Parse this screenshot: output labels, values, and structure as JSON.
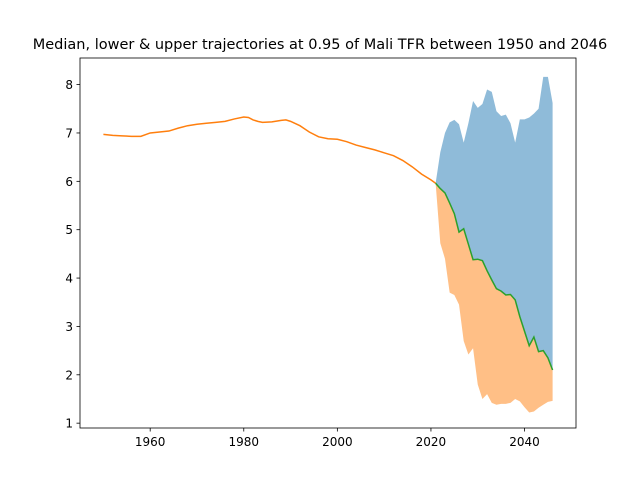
{
  "chart_data": {
    "type": "area",
    "title": "Median, lower & upper trajectories at 0.95 of Mali TFR between 1950 and 2046",
    "xlabel": "",
    "ylabel": "",
    "xlim": [
      1945,
      2051
    ],
    "ylim": [
      0.9,
      8.55
    ],
    "x_ticks": [
      1960,
      1980,
      2000,
      2020,
      2040
    ],
    "y_ticks": [
      1,
      2,
      3,
      4,
      5,
      6,
      7,
      8
    ],
    "grid": false,
    "legend": "none",
    "colors": {
      "upper_band": "#1f77b4",
      "lower_band": "#ff7f0e",
      "historical_line": "#ff7f0e",
      "median_line": "#2ca02c"
    },
    "series": [
      {
        "role": "historical",
        "x": [
          1950,
          1952,
          1954,
          1956,
          1958,
          1960,
          1962,
          1964,
          1966,
          1968,
          1970,
          1972,
          1974,
          1976,
          1978,
          1980,
          1981,
          1982,
          1983,
          1984,
          1986,
          1988,
          1989,
          1990,
          1992,
          1994,
          1996,
          1998,
          2000,
          2002,
          2004,
          2006,
          2008,
          2010,
          2012,
          2014,
          2016,
          2018,
          2020,
          2021
        ],
        "values": [
          6.97,
          6.95,
          6.94,
          6.93,
          6.93,
          7.0,
          7.02,
          7.04,
          7.1,
          7.15,
          7.18,
          7.2,
          7.22,
          7.24,
          7.29,
          7.33,
          7.32,
          7.27,
          7.24,
          7.22,
          7.23,
          7.26,
          7.27,
          7.24,
          7.15,
          7.02,
          6.92,
          6.88,
          6.87,
          6.82,
          6.75,
          6.7,
          6.65,
          6.59,
          6.53,
          6.43,
          6.3,
          6.15,
          6.03,
          5.96
        ]
      },
      {
        "role": "median",
        "x": [
          2021,
          2022,
          2023,
          2024,
          2025,
          2026,
          2027,
          2028,
          2029,
          2030,
          2031,
          2032,
          2033,
          2034,
          2035,
          2036,
          2037,
          2038,
          2039,
          2040,
          2041,
          2042,
          2043,
          2044,
          2045,
          2046
        ],
        "values": [
          5.96,
          5.85,
          5.76,
          5.55,
          5.33,
          4.95,
          5.02,
          4.7,
          4.38,
          4.39,
          4.36,
          4.15,
          3.96,
          3.78,
          3.73,
          3.65,
          3.66,
          3.55,
          3.2,
          2.9,
          2.6,
          2.78,
          2.48,
          2.5,
          2.35,
          2.1
        ]
      },
      {
        "role": "upper",
        "x": [
          2021,
          2022,
          2023,
          2024,
          2025,
          2026,
          2027,
          2028,
          2029,
          2030,
          2031,
          2032,
          2033,
          2034,
          2035,
          2036,
          2037,
          2038,
          2039,
          2040,
          2041,
          2042,
          2043,
          2044,
          2045,
          2046
        ],
        "values": [
          5.96,
          6.6,
          7.0,
          7.22,
          7.27,
          7.18,
          6.8,
          7.2,
          7.66,
          7.52,
          7.6,
          7.9,
          7.85,
          7.45,
          7.35,
          7.38,
          7.2,
          6.8,
          7.28,
          7.28,
          7.32,
          7.4,
          7.5,
          8.16,
          8.16,
          7.62
        ]
      },
      {
        "role": "lower",
        "x": [
          2021,
          2022,
          2023,
          2024,
          2025,
          2026,
          2027,
          2028,
          2029,
          2030,
          2031,
          2032,
          2033,
          2034,
          2035,
          2036,
          2037,
          2038,
          2039,
          2040,
          2041,
          2042,
          2043,
          2044,
          2045,
          2046
        ],
        "values": [
          5.96,
          4.72,
          4.4,
          3.7,
          3.65,
          3.45,
          2.7,
          2.42,
          2.55,
          1.8,
          1.5,
          1.6,
          1.42,
          1.38,
          1.4,
          1.4,
          1.42,
          1.5,
          1.45,
          1.33,
          1.22,
          1.24,
          1.32,
          1.38,
          1.44,
          1.46
        ]
      }
    ]
  }
}
